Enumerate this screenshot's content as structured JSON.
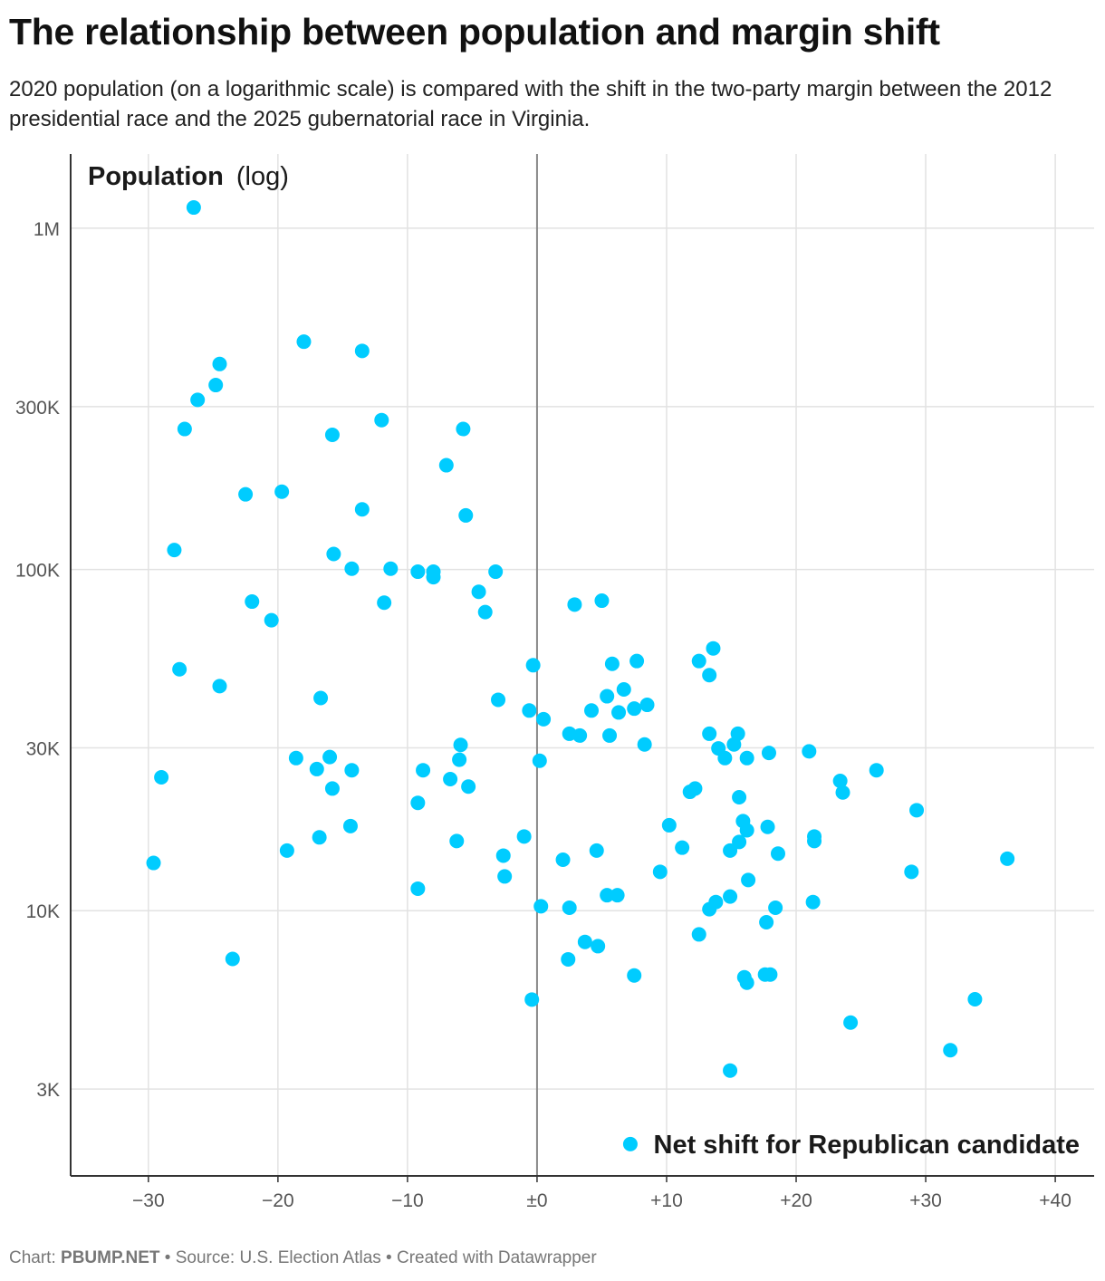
{
  "title": "The relationship between population and margin shift",
  "subtitle": "2020 population (on a logarithmic scale) is compared with the shift in the two-party margin between the 2012 presidential race and the 2025 gubernatorial race in Virginia.",
  "footer": {
    "chart_prefix": "Chart:",
    "chart_source": "PBUMP.NET",
    "sep1": "•",
    "source": "Source: U.S. Election Atlas",
    "sep2": "•",
    "created": "Created with Datawrapper"
  },
  "colors": {
    "points": "#00ccff",
    "grid": "#e2e2e2",
    "zero_line": "#888888",
    "axis": "#333333"
  },
  "chart_data": {
    "type": "scatter",
    "title": "The relationship between population and margin shift",
    "xlabel": "Net shift for Republican candidate",
    "ylabel_bold": "Population",
    "ylabel_rest": "(log)",
    "xlim": [
      -36,
      43
    ],
    "ylim": [
      1670,
      1650000
    ],
    "y_scale": "log",
    "x_ticks": [
      {
        "value": -30,
        "label": "−30"
      },
      {
        "value": -20,
        "label": "−20"
      },
      {
        "value": -10,
        "label": "−10"
      },
      {
        "value": 0,
        "label": "±0"
      },
      {
        "value": 10,
        "label": "+10"
      },
      {
        "value": 20,
        "label": "+20"
      },
      {
        "value": 30,
        "label": "+30"
      },
      {
        "value": 40,
        "label": "+40"
      }
    ],
    "y_ticks": [
      {
        "value": 1000000,
        "label": "1M"
      },
      {
        "value": 300000,
        "label": "300K"
      },
      {
        "value": 100000,
        "label": "100K"
      },
      {
        "value": 30000,
        "label": "30K"
      },
      {
        "value": 10000,
        "label": "10K"
      },
      {
        "value": 3000,
        "label": "3K"
      }
    ],
    "grid": true,
    "points": [
      [
        -26.5,
        1150000
      ],
      [
        -18.0,
        465000
      ],
      [
        -13.5,
        437000
      ],
      [
        -24.5,
        400000
      ],
      [
        -24.8,
        347000
      ],
      [
        -26.2,
        314000
      ],
      [
        -27.2,
        258000
      ],
      [
        -15.8,
        248000
      ],
      [
        -12.0,
        274000
      ],
      [
        -5.7,
        258000
      ],
      [
        -7.0,
        202000
      ],
      [
        -22.5,
        166000
      ],
      [
        -19.7,
        169000
      ],
      [
        -13.5,
        150000
      ],
      [
        -5.5,
        144000
      ],
      [
        -28.0,
        114000
      ],
      [
        -15.7,
        111000
      ],
      [
        -14.3,
        100500
      ],
      [
        -11.3,
        100500
      ],
      [
        -9.2,
        98500
      ],
      [
        -8.0,
        98500
      ],
      [
        -8.0,
        94900
      ],
      [
        -3.2,
        98500
      ],
      [
        -4.5,
        86000
      ],
      [
        -22.0,
        80500
      ],
      [
        -11.8,
        79900
      ],
      [
        -20.5,
        71000
      ],
      [
        -4.0,
        75000
      ],
      [
        2.9,
        78900
      ],
      [
        5.0,
        81000
      ],
      [
        -27.6,
        51000
      ],
      [
        -24.5,
        45500
      ],
      [
        -16.7,
        42000
      ],
      [
        -0.3,
        52400
      ],
      [
        5.8,
        52900
      ],
      [
        7.7,
        53900
      ],
      [
        12.5,
        53900
      ],
      [
        13.6,
        58700
      ],
      [
        13.3,
        49000
      ],
      [
        -3.0,
        41500
      ],
      [
        -0.6,
        38600
      ],
      [
        0.5,
        36400
      ],
      [
        5.4,
        42500
      ],
      [
        6.7,
        44500
      ],
      [
        4.2,
        38600
      ],
      [
        6.3,
        38100
      ],
      [
        7.5,
        39100
      ],
      [
        8.5,
        40100
      ],
      [
        2.5,
        33000
      ],
      [
        3.3,
        32600
      ],
      [
        5.6,
        32600
      ],
      [
        8.3,
        30700
      ],
      [
        13.3,
        33000
      ],
      [
        15.5,
        33000
      ],
      [
        -5.9,
        30600
      ],
      [
        14.0,
        29900
      ],
      [
        15.2,
        30700
      ],
      [
        17.9,
        29000
      ],
      [
        21.0,
        29300
      ],
      [
        -18.6,
        28000
      ],
      [
        -16.0,
        28200
      ],
      [
        -6.0,
        27700
      ],
      [
        0.2,
        27500
      ],
      [
        14.5,
        28000
      ],
      [
        16.2,
        28000
      ],
      [
        -29.0,
        24600
      ],
      [
        -17.0,
        26000
      ],
      [
        -14.3,
        25800
      ],
      [
        -8.8,
        25800
      ],
      [
        26.2,
        25800
      ],
      [
        -15.8,
        22800
      ],
      [
        -6.7,
        24300
      ],
      [
        -5.3,
        23100
      ],
      [
        12.2,
        22800
      ],
      [
        11.8,
        22300
      ],
      [
        15.6,
        21500
      ],
      [
        23.4,
        24000
      ],
      [
        23.6,
        22200
      ],
      [
        -9.2,
        20700
      ],
      [
        -14.4,
        17700
      ],
      [
        -16.8,
        16400
      ],
      [
        -19.3,
        15000
      ],
      [
        -6.2,
        16000
      ],
      [
        -1.0,
        16500
      ],
      [
        10.2,
        17800
      ],
      [
        15.9,
        18300
      ],
      [
        16.2,
        17200
      ],
      [
        17.8,
        17600
      ],
      [
        21.4,
        16500
      ],
      [
        21.4,
        16000
      ],
      [
        29.3,
        19700
      ],
      [
        -29.6,
        13800
      ],
      [
        -2.6,
        14500
      ],
      [
        -2.5,
        12600
      ],
      [
        2.0,
        14100
      ],
      [
        4.6,
        15000
      ],
      [
        11.2,
        15300
      ],
      [
        14.9,
        15000
      ],
      [
        15.6,
        15900
      ],
      [
        18.6,
        14700
      ],
      [
        9.5,
        13000
      ],
      [
        16.3,
        12300
      ],
      [
        28.9,
        13000
      ],
      [
        36.3,
        14200
      ],
      [
        -9.2,
        11600
      ],
      [
        5.4,
        11100
      ],
      [
        6.2,
        11100
      ],
      [
        14.9,
        11000
      ],
      [
        21.3,
        10600
      ],
      [
        0.3,
        10300
      ],
      [
        2.5,
        10200
      ],
      [
        13.3,
        10100
      ],
      [
        13.8,
        10600
      ],
      [
        18.4,
        10200
      ],
      [
        17.7,
        9250
      ],
      [
        12.5,
        8520
      ],
      [
        3.7,
        8100
      ],
      [
        4.7,
        7870
      ],
      [
        -23.5,
        7220
      ],
      [
        2.4,
        7200
      ],
      [
        7.5,
        6460
      ],
      [
        16.0,
        6380
      ],
      [
        16.2,
        6150
      ],
      [
        17.6,
        6500
      ],
      [
        18.0,
        6500
      ],
      [
        -0.4,
        5490
      ],
      [
        33.8,
        5500
      ],
      [
        24.2,
        4700
      ],
      [
        31.9,
        3900
      ],
      [
        14.9,
        3400
      ],
      [
        7.2,
        2070
      ]
    ]
  }
}
